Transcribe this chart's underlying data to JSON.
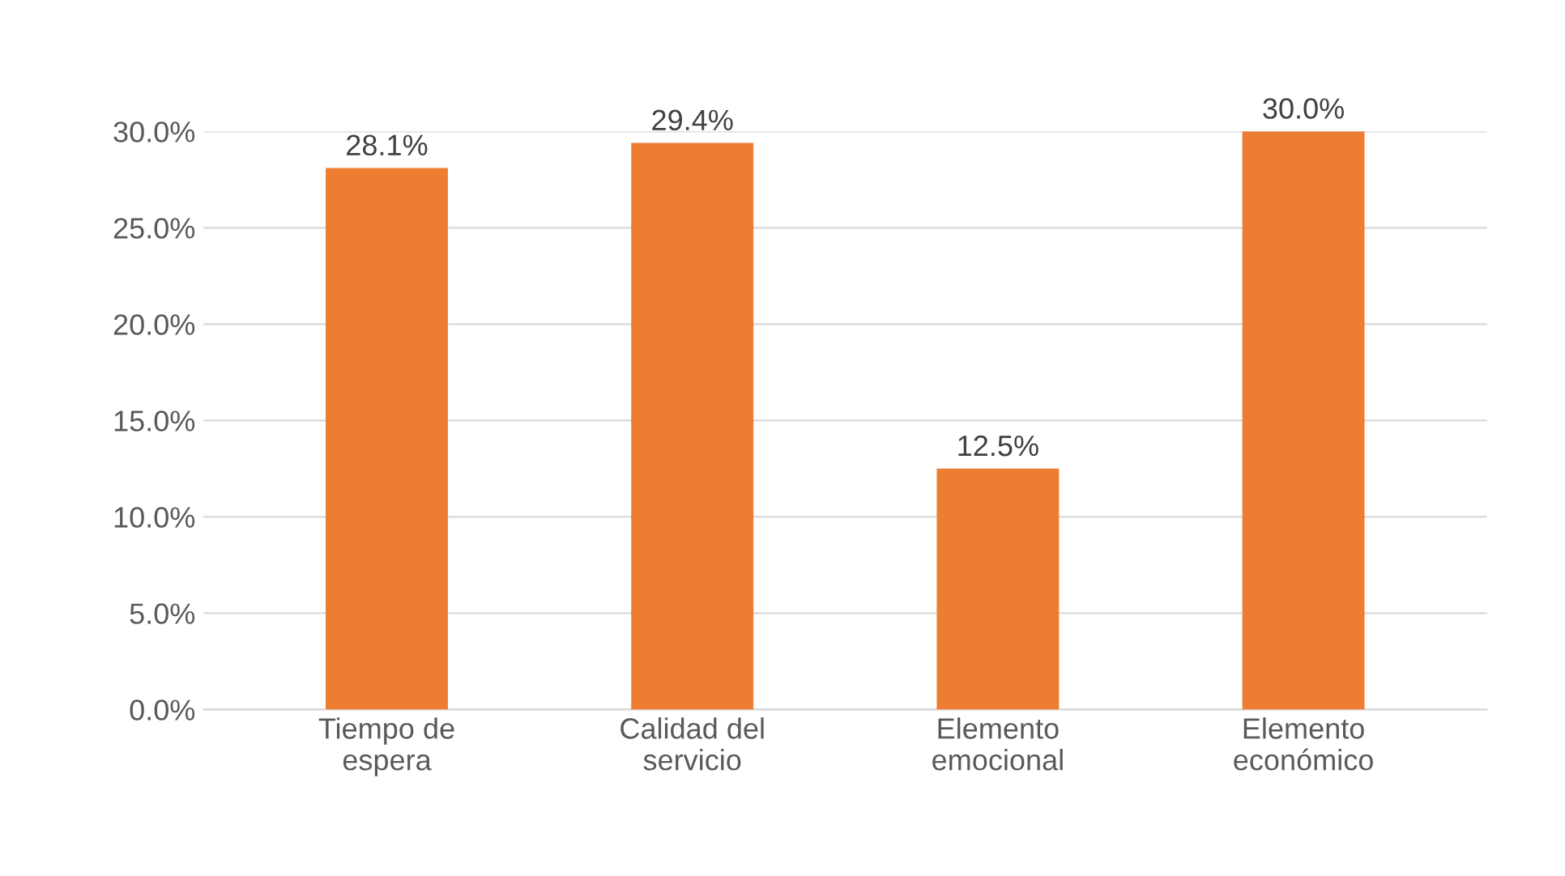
{
  "chart_data": {
    "type": "bar",
    "categories": [
      "Tiempo de\nespera",
      "Calidad del\nservicio",
      "Elemento\nemocional",
      "Elemento\neconómico"
    ],
    "values": [
      28.1,
      29.4,
      12.5,
      30.0
    ],
    "value_labels": [
      "28.1%",
      "29.4%",
      "12.5%",
      "30.0%"
    ],
    "color": "#ed7d31",
    "ylim": [
      0,
      30
    ],
    "yticks": [
      {
        "value": 0,
        "label": "0.0%"
      },
      {
        "value": 5,
        "label": "5.0%"
      },
      {
        "value": 10,
        "label": "10.0%"
      },
      {
        "value": 15,
        "label": "15.0%"
      },
      {
        "value": 20,
        "label": "20.0%"
      },
      {
        "value": 25,
        "label": "25.0%"
      },
      {
        "value": 30,
        "label": "30.0%"
      }
    ],
    "grid": "y"
  }
}
